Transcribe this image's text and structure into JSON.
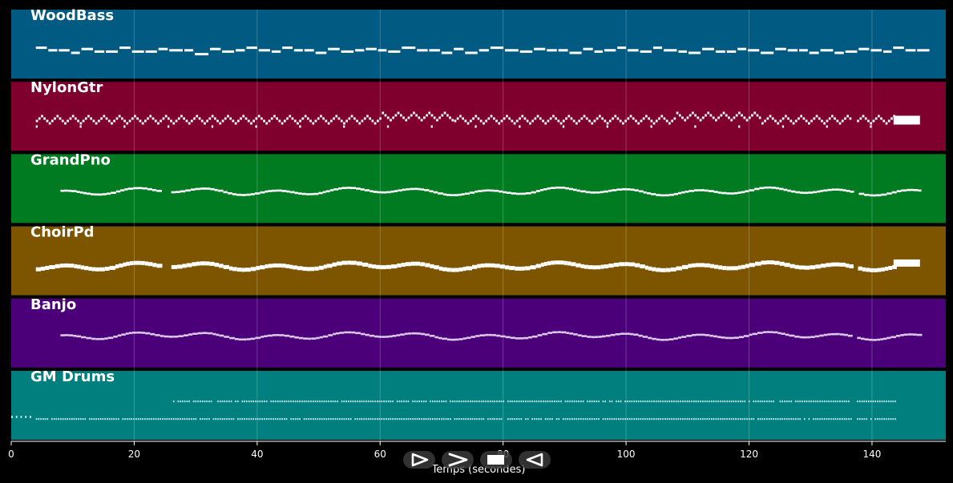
{
  "chart_data": {
    "type": "piano-roll",
    "xlabel": "Temps (secondes)",
    "xlim": [
      0,
      152
    ],
    "x_ticks": [
      0,
      20,
      40,
      60,
      80,
      100,
      120,
      140
    ],
    "grid": true,
    "tracks": [
      {
        "name": "WoodBass",
        "color": "#005a82",
        "note_color": "#ffffff",
        "style": "bass",
        "start": 4,
        "end": 148,
        "gaps": [
          [
            26,
            28
          ],
          [
            136.5,
            137.5
          ]
        ]
      },
      {
        "name": "NylonGtr",
        "color": "#80002d",
        "note_color": "#ffffff",
        "style": "arpeggio",
        "start": 4,
        "end": 148,
        "gaps": [
          [
            136.5,
            137.5
          ]
        ],
        "final_block": [
          143.5,
          147.8
        ]
      },
      {
        "name": "GrandPno",
        "color": "#007b22",
        "note_color": "#ffffff",
        "style": "melody",
        "start": 8,
        "end": 148,
        "gaps": [
          [
            24,
            25.5
          ],
          [
            136.5,
            137.5
          ]
        ]
      },
      {
        "name": "ChoirPd",
        "color": "#7d5500",
        "note_color": "#ffffff",
        "style": "pad",
        "start": 4,
        "end": 148,
        "gaps": [
          [
            24,
            25.5
          ],
          [
            136.5,
            137.5
          ]
        ],
        "final_block": [
          143.5,
          147.8
        ]
      },
      {
        "name": "Banjo",
        "color": "#4b007a",
        "note_color": "#d9c8e8",
        "style": "melody-light",
        "start": 8,
        "end": 148,
        "gaps": [
          [
            136.5,
            137.5
          ]
        ]
      },
      {
        "name": "GM Drums",
        "color": "#007f7f",
        "note_color": "#b8e6e6",
        "style": "drums",
        "start": 0,
        "end": 144,
        "gaps": [
          [
            136.5,
            137.5
          ]
        ]
      }
    ]
  },
  "controls": {
    "buttons": [
      {
        "name": "play",
        "icon": "play-icon"
      },
      {
        "name": "fast-forward",
        "icon": "fast-forward-icon"
      },
      {
        "name": "stop",
        "icon": "stop-icon"
      },
      {
        "name": "rewind",
        "icon": "rewind-icon"
      }
    ]
  }
}
